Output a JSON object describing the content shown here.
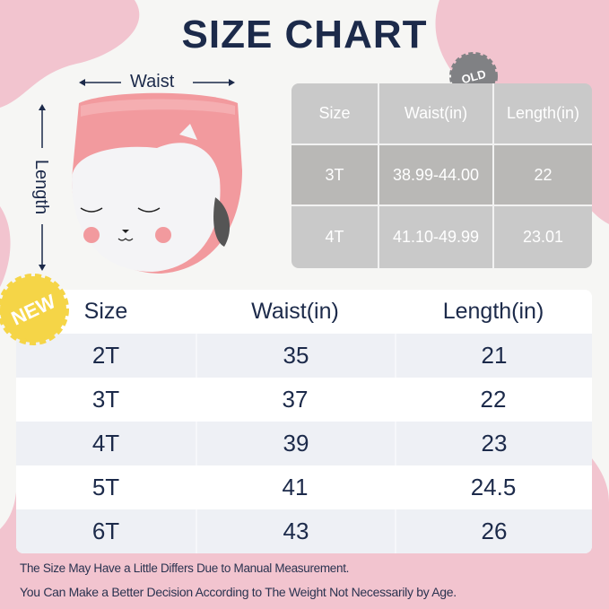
{
  "title": "SIZE CHART",
  "labels": {
    "waist": "Waist",
    "length": "Length"
  },
  "old_badge": "OLD",
  "new_badge": "NEW",
  "colors": {
    "pink": "#f2c4cf",
    "navy": "#1c2a4a",
    "old_table": "#c9c9c9",
    "new_badge": "#f5d547",
    "old_badge": "#808184"
  },
  "old_table": {
    "headers": [
      "Size",
      "Waist(in)",
      "Length(in)"
    ],
    "rows": [
      [
        "3T",
        "38.99-44.00",
        "22"
      ],
      [
        "4T",
        "41.10-49.99",
        "23.01"
      ]
    ]
  },
  "new_table": {
    "headers": [
      "Size",
      "Waist(in)",
      "Length(in)"
    ],
    "rows": [
      [
        "2T",
        "35",
        "21"
      ],
      [
        "3T",
        "37",
        "22"
      ],
      [
        "4T",
        "39",
        "23"
      ],
      [
        "5T",
        "41",
        "24.5"
      ],
      [
        "6T",
        "43",
        "26"
      ]
    ]
  },
  "notes": [
    "The Size May Have a Little Differs Due to Manual Measurement.",
    "You Can Make a Better Decision According to The Weight Not Necessarily by Age."
  ]
}
